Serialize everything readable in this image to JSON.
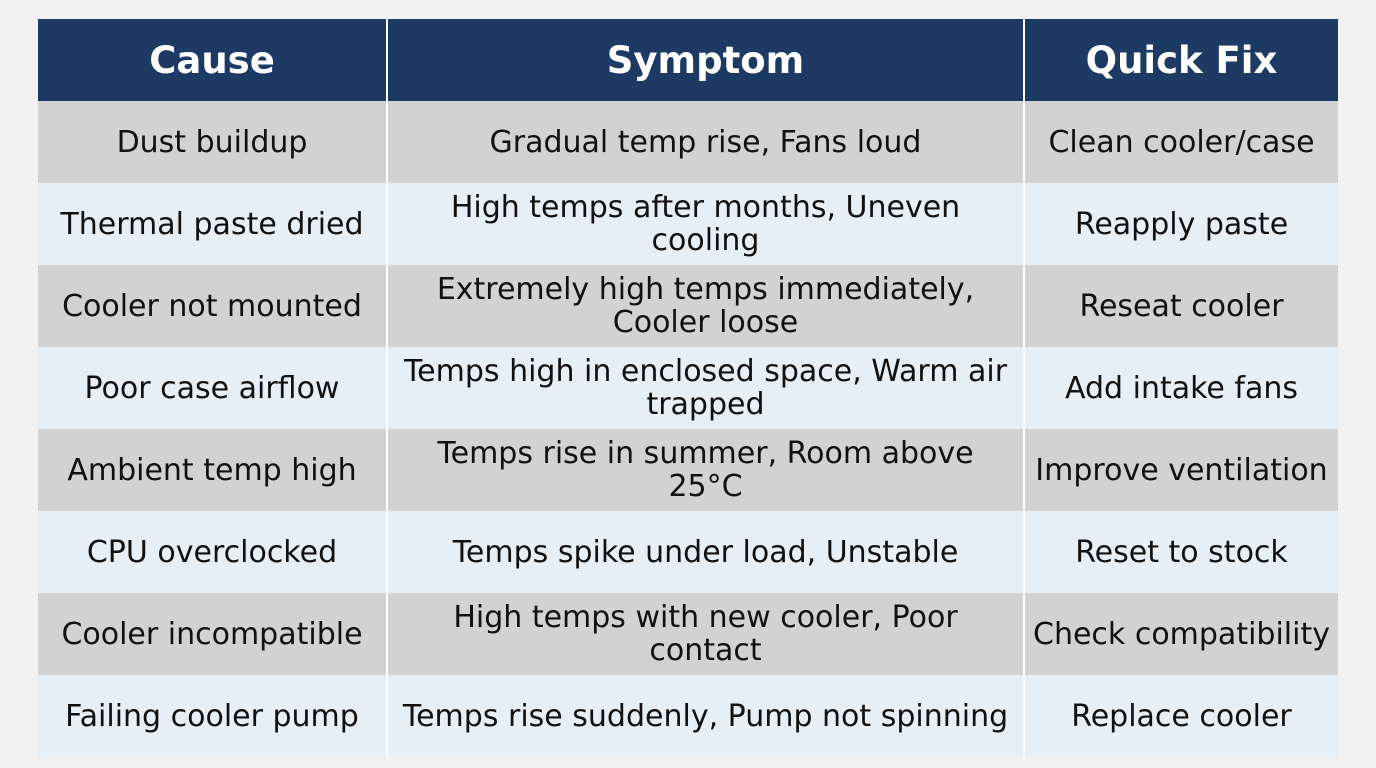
{
  "table": {
    "headers": [
      "Cause",
      "Symptom",
      "Quick Fix"
    ],
    "rows": [
      [
        "Dust buildup",
        "Gradual temp rise, Fans loud",
        "Clean cooler/case"
      ],
      [
        "Thermal paste dried",
        "High temps after months, Uneven cooling",
        "Reapply paste"
      ],
      [
        "Cooler not mounted",
        "Extremely high temps immediately, Cooler loose",
        "Reseat cooler"
      ],
      [
        "Poor case airflow",
        "Temps high in enclosed space, Warm air trapped",
        "Add intake fans"
      ],
      [
        "Ambient temp high",
        "Temps rise in summer, Room above 25°C",
        "Improve ventilation"
      ],
      [
        "CPU overclocked",
        "Temps spike under load, Unstable",
        "Reset to stock"
      ],
      [
        "Cooler incompatible",
        "High temps with new cooler, Poor contact",
        "Check compatibility"
      ],
      [
        "Failing cooler pump",
        "Temps rise suddenly, Pump not spinning",
        "Replace cooler"
      ]
    ]
  },
  "colors": {
    "header_bg": "#1c3a63",
    "header_text": "#ffffff",
    "row_odd": "#d2d2d2",
    "row_even": "#e6eef6"
  }
}
